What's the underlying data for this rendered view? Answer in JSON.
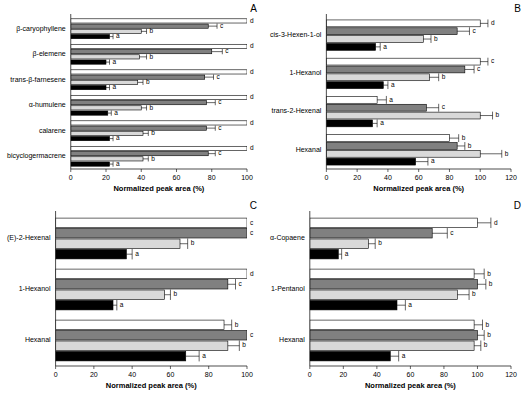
{
  "chart_data": [
    {
      "type": "bar",
      "title": "A",
      "orientation": "horizontal",
      "x_label": "Normalized peak area (%)",
      "categories": [
        "β-caryophyllene",
        "β-elemene",
        "trans-β-farnesene",
        "α-humulene",
        "calarene",
        "bicyclogermacrene"
      ],
      "xlim": [
        0,
        100
      ],
      "xticks": [
        0,
        20,
        40,
        60,
        80,
        100
      ],
      "grid": false,
      "series": [
        {
          "color": "#ffffff",
          "values": [
            100,
            100,
            100,
            100,
            100,
            100
          ],
          "errors": [
            4,
            5,
            4,
            4,
            5,
            4
          ],
          "letters": [
            "d",
            "d",
            "d",
            "d",
            "d",
            "d"
          ]
        },
        {
          "color": "#808080",
          "values": [
            78,
            80,
            76,
            77,
            77,
            78
          ],
          "errors": [
            5,
            6,
            5,
            5,
            5,
            4
          ],
          "letters": [
            "c",
            "c",
            "c",
            "c",
            "c",
            "c"
          ]
        },
        {
          "color": "#d9d9d9",
          "values": [
            40,
            39,
            38,
            40,
            41,
            41
          ],
          "errors": [
            3,
            4,
            3,
            3,
            3,
            3
          ],
          "letters": [
            "b",
            "b",
            "b",
            "b",
            "b",
            "b"
          ]
        },
        {
          "color": "#000000",
          "values": [
            22,
            20,
            20,
            21,
            22,
            22
          ],
          "errors": [
            2,
            2,
            2,
            2,
            2,
            2
          ],
          "letters": [
            "a",
            "a",
            "a",
            "a",
            "a",
            "a"
          ]
        }
      ]
    },
    {
      "type": "bar",
      "title": "B",
      "orientation": "horizontal",
      "x_label": "Normalized peak area (%)",
      "categories": [
        "cis-3-Hexen-1-ol",
        "1-Hexanol",
        "trans-2-Hexenal",
        "Hexanal"
      ],
      "xlim": [
        0,
        120
      ],
      "xticks": [
        0,
        20,
        40,
        60,
        80,
        100,
        120
      ],
      "grid": false,
      "series": [
        {
          "color": "#ffffff",
          "values": [
            100,
            100,
            33,
            80
          ],
          "errors": [
            5,
            5,
            6,
            6
          ],
          "letters": [
            "d",
            "c",
            "a",
            "b"
          ]
        },
        {
          "color": "#808080",
          "values": [
            85,
            90,
            65,
            85
          ],
          "errors": [
            8,
            6,
            8,
            5
          ],
          "letters": [
            "c",
            "c",
            "c",
            "b"
          ]
        },
        {
          "color": "#d9d9d9",
          "values": [
            63,
            67,
            100,
            100
          ],
          "errors": [
            5,
            6,
            8,
            14
          ],
          "letters": [
            "b",
            "b",
            "b",
            "b"
          ]
        },
        {
          "color": "#000000",
          "values": [
            32,
            37,
            30,
            58
          ],
          "errors": [
            3,
            3,
            3,
            8
          ],
          "letters": [
            "a",
            "a",
            "a",
            "a"
          ]
        }
      ]
    },
    {
      "type": "bar",
      "title": "C",
      "orientation": "horizontal",
      "x_label": "Normalized peak area (%)",
      "categories": [
        "(E)-2-Hexenal",
        "1-Hexanol",
        "Hexanal"
      ],
      "xlim": [
        0,
        100
      ],
      "xticks": [
        0,
        20,
        40,
        60,
        80,
        100
      ],
      "grid": false,
      "series": [
        {
          "color": "#ffffff",
          "values": [
            100,
            100,
            88
          ],
          "errors": [
            4,
            4,
            4
          ],
          "letters": [
            "c",
            "d",
            "b"
          ]
        },
        {
          "color": "#808080",
          "values": [
            100,
            90,
            100
          ],
          "errors": [
            6,
            4,
            5
          ],
          "letters": [
            "c",
            "c",
            "c"
          ]
        },
        {
          "color": "#d9d9d9",
          "values": [
            65,
            57,
            90
          ],
          "errors": [
            4,
            3,
            6
          ],
          "letters": [
            "b",
            "b",
            "b"
          ]
        },
        {
          "color": "#000000",
          "values": [
            37,
            30,
            68
          ],
          "errors": [
            3,
            2,
            7
          ],
          "letters": [
            "a",
            "a",
            "a"
          ]
        }
      ]
    },
    {
      "type": "bar",
      "title": "D",
      "orientation": "horizontal",
      "x_label": "Normalized peak area (%)",
      "categories": [
        "α-Copaene",
        "1-Pentanol",
        "Hexanal"
      ],
      "xlim": [
        0,
        120
      ],
      "xticks": [
        0,
        20,
        40,
        60,
        80,
        100,
        120
      ],
      "grid": false,
      "series": [
        {
          "color": "#ffffff",
          "values": [
            100,
            98,
            98
          ],
          "errors": [
            8,
            6,
            5
          ],
          "letters": [
            "d",
            "b",
            "b"
          ]
        },
        {
          "color": "#808080",
          "values": [
            73,
            100,
            100
          ],
          "errors": [
            9,
            5,
            4
          ],
          "letters": [
            "c",
            "b",
            "b"
          ]
        },
        {
          "color": "#d9d9d9",
          "values": [
            35,
            88,
            98
          ],
          "errors": [
            4,
            7,
            4
          ],
          "letters": [
            "b",
            "b",
            "b"
          ]
        },
        {
          "color": "#000000",
          "values": [
            17,
            52,
            48
          ],
          "errors": [
            2,
            5,
            5
          ],
          "letters": [
            "a",
            "a",
            "a"
          ]
        }
      ]
    }
  ]
}
